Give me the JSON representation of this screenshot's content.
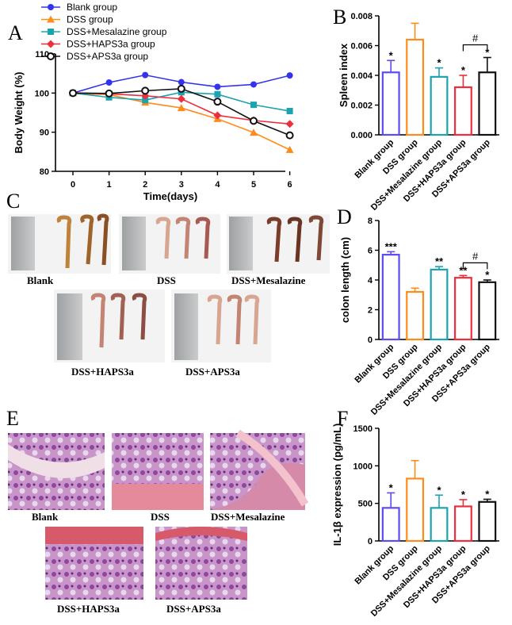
{
  "panels": {
    "A": "A",
    "B": "B",
    "C": "C",
    "D": "D",
    "E": "E",
    "F": "F"
  },
  "chart_data": [
    {
      "id": "A",
      "type": "line",
      "xlabel": "Time(days)",
      "ylabel": "Body Weight (%)",
      "x": [
        0,
        1,
        2,
        3,
        4,
        5,
        6
      ],
      "xticks": [
        "0",
        "1",
        "2",
        "3",
        "4",
        "5",
        "6"
      ],
      "ylim": [
        80,
        110
      ],
      "yticks": [
        "80",
        "90",
        "100",
        "110"
      ],
      "series": [
        {
          "name": "Blank group",
          "color": "#3333ee",
          "marker": "circle",
          "values": [
            100,
            102.7,
            104.6,
            102.8,
            101.6,
            102.2,
            104.5
          ]
        },
        {
          "name": "DSS group",
          "color": "#ff8c1a",
          "marker": "triangle",
          "values": [
            100,
            99.6,
            97.6,
            96.2,
            93.4,
            89.9,
            85.5
          ]
        },
        {
          "name": "DSS+Mesalazine group",
          "color": "#1ca3b0",
          "marker": "square",
          "values": [
            100,
            98.9,
            98.2,
            100.2,
            99.7,
            97.0,
            95.4
          ]
        },
        {
          "name": "DSS+HAPS3a group",
          "color": "#ee2e3c",
          "marker": "diamond",
          "values": [
            100,
            99.8,
            99.3,
            98.5,
            94.3,
            93.0,
            92.1
          ]
        },
        {
          "name": "DSS+APS3a group",
          "color": "#111111",
          "marker": "open-circle",
          "values": [
            100,
            99.9,
            100.6,
            101.1,
            97.8,
            92.9,
            89.2
          ]
        }
      ]
    },
    {
      "id": "B",
      "type": "bar",
      "ylabel": "Spleen index",
      "categories": [
        "Blank group",
        "DSS group",
        "DSS+Mesalazine group",
        "DSS+HAPS3a group",
        "DSS+APS3a group"
      ],
      "colors": [
        "#5b4cf5",
        "#ff8c1a",
        "#1ca3b0",
        "#ee2e3c",
        "#111111"
      ],
      "values": [
        0.0042,
        0.0064,
        0.0039,
        0.0032,
        0.0042
      ],
      "errors": [
        0.0008,
        0.0011,
        0.0006,
        0.0008,
        0.001
      ],
      "labels": [
        "*",
        "",
        "*",
        "*",
        "*"
      ],
      "ylim": [
        0,
        0.008
      ],
      "yticks": [
        "0.000",
        "0.002",
        "0.004",
        "0.006",
        "0.008"
      ],
      "bracket": {
        "from": 3,
        "to": 4,
        "label": "#"
      }
    },
    {
      "id": "D",
      "type": "bar",
      "ylabel": "colon length (cm)",
      "categories": [
        "Blank group",
        "DSS group",
        "DSS+Mesalazine group",
        "DSS+HAPS3a group",
        "DSS+APS3a group"
      ],
      "colors": [
        "#5b4cf5",
        "#ff8c1a",
        "#1ca3b0",
        "#ee2e3c",
        "#111111"
      ],
      "values": [
        5.7,
        3.2,
        4.7,
        4.15,
        3.85
      ],
      "errors": [
        0.2,
        0.25,
        0.2,
        0.15,
        0.15
      ],
      "labels": [
        "***",
        "",
        "**",
        "**",
        "*"
      ],
      "ylim": [
        0,
        8
      ],
      "yticks": [
        "0",
        "2",
        "4",
        "6",
        "8"
      ],
      "bracket": {
        "from": 3,
        "to": 4,
        "label": "#"
      }
    },
    {
      "id": "F",
      "type": "bar",
      "ylabel": "IL-1β expression (pg/mL)",
      "categories": [
        "Blank group",
        "DSS group",
        "DSS+Mesalazine group",
        "DSS+HAPS3a group",
        "DSS+APS3a group"
      ],
      "colors": [
        "#5b4cf5",
        "#ff8c1a",
        "#1ca3b0",
        "#ee2e3c",
        "#111111"
      ],
      "values": [
        440,
        830,
        440,
        460,
        520
      ],
      "errors": [
        200,
        240,
        170,
        90,
        35
      ],
      "labels": [
        "*",
        "",
        "*",
        "*",
        "*"
      ],
      "ylim": [
        0,
        1500
      ],
      "yticks": [
        "0",
        "500",
        "1000",
        "1500"
      ]
    }
  ],
  "photos_C": [
    {
      "label": "Blank"
    },
    {
      "label": "DSS"
    },
    {
      "label": "DSS+Mesalazine"
    },
    {
      "label": "DSS+HAPS3a"
    },
    {
      "label": "DSS+APS3a"
    }
  ],
  "photos_E": [
    {
      "label": "Blank"
    },
    {
      "label": "DSS"
    },
    {
      "label": "DSS+Mesalazine"
    },
    {
      "label": "DSS+HAPS3a"
    },
    {
      "label": "DSS+APS3a"
    }
  ]
}
